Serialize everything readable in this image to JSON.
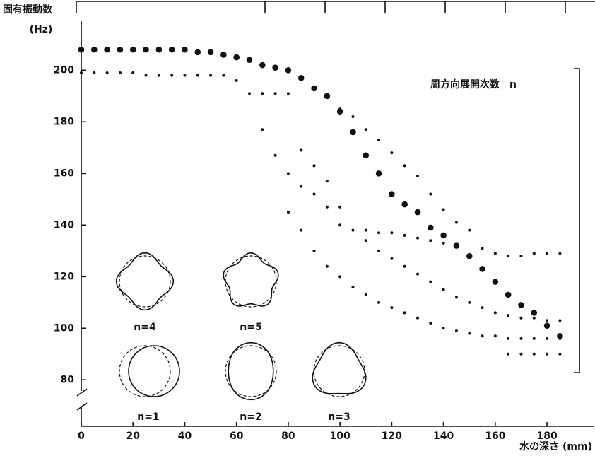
{
  "chart_data": {
    "type": "scatter",
    "title": "固有振動数",
    "y_unit": "(Hz)",
    "x_label": "水の深さ (mm)",
    "annotation": "周方向展開次数　n",
    "mode_labels": [
      "n=4",
      "n=5",
      "n=1",
      "n=2",
      "n=3"
    ],
    "xlim": [
      0,
      198
    ],
    "ylim": [
      62,
      219
    ],
    "xticks": [
      0,
      20,
      40,
      60,
      80,
      100,
      120,
      140,
      160,
      180
    ],
    "yticks": [
      80,
      100,
      120,
      140,
      160,
      180,
      200
    ],
    "series": [
      {
        "color": "#111111",
        "x": [
          0,
          5,
          10,
          15,
          20,
          25,
          30,
          35,
          40,
          45,
          50,
          55,
          60,
          65,
          70,
          75,
          80,
          85,
          90,
          95,
          100,
          105,
          110,
          115,
          120,
          125,
          130,
          135,
          140,
          145,
          150,
          155,
          160,
          165,
          170,
          175,
          180,
          185
        ],
        "values": [
          208,
          208,
          208,
          208,
          208,
          208,
          208,
          208,
          208,
          207,
          207,
          206,
          205,
          204,
          202,
          201,
          200,
          197,
          193,
          190,
          184,
          176,
          167,
          160,
          152,
          148,
          145,
          139,
          136,
          132,
          128,
          123,
          118,
          113,
          109,
          106,
          101,
          97
        ]
      },
      {
        "color": "#111111",
        "x": [
          0,
          5,
          10,
          15,
          20,
          25,
          30,
          35,
          40,
          45,
          50,
          55,
          60,
          65,
          70,
          75,
          80,
          100,
          105,
          110,
          115,
          120,
          125,
          130,
          135,
          140,
          145,
          150,
          155,
          160,
          165,
          170,
          175,
          180,
          185
        ],
        "values": [
          199,
          199,
          199,
          199,
          199,
          198,
          198,
          198,
          198,
          198,
          198,
          198,
          196,
          191,
          191,
          191,
          191,
          185,
          182,
          177,
          173,
          168,
          163,
          159,
          152,
          146,
          141,
          138,
          131,
          129,
          128,
          128,
          129,
          129,
          129
        ]
      },
      {
        "color": "#111111",
        "x": [
          70,
          75,
          80,
          85,
          90,
          95,
          100,
          105,
          110,
          115,
          120,
          125,
          130,
          135,
          140,
          145
        ],
        "values": [
          177,
          167,
          160,
          155,
          152,
          147,
          140,
          138,
          138,
          137,
          137,
          136,
          135,
          134,
          133,
          132
        ]
      },
      {
        "color": "#111111",
        "x": [
          85,
          90,
          95,
          100,
          110,
          115,
          120,
          125,
          130,
          135,
          140,
          145,
          150,
          155,
          160,
          165,
          170,
          175,
          180,
          185
        ],
        "values": [
          169,
          163,
          157,
          147,
          134,
          130,
          127,
          124,
          121,
          118,
          115,
          112,
          110,
          108,
          106,
          105,
          104,
          104,
          103,
          103
        ]
      },
      {
        "color": "#111111",
        "x": [
          80,
          85,
          90,
          95,
          100,
          105,
          110,
          115,
          120,
          125,
          130,
          135,
          140,
          145,
          150,
          155,
          160,
          165,
          170,
          175,
          180,
          185
        ],
        "values": [
          145,
          138,
          130,
          124,
          120,
          116,
          113,
          110,
          108,
          106,
          104,
          102,
          100,
          99,
          98,
          97,
          97,
          96,
          96,
          96,
          96,
          96
        ]
      },
      {
        "color": "#111111",
        "x": [
          165,
          170,
          175,
          180,
          185
        ],
        "values": [
          90,
          90,
          90,
          90,
          90
        ]
      }
    ]
  }
}
